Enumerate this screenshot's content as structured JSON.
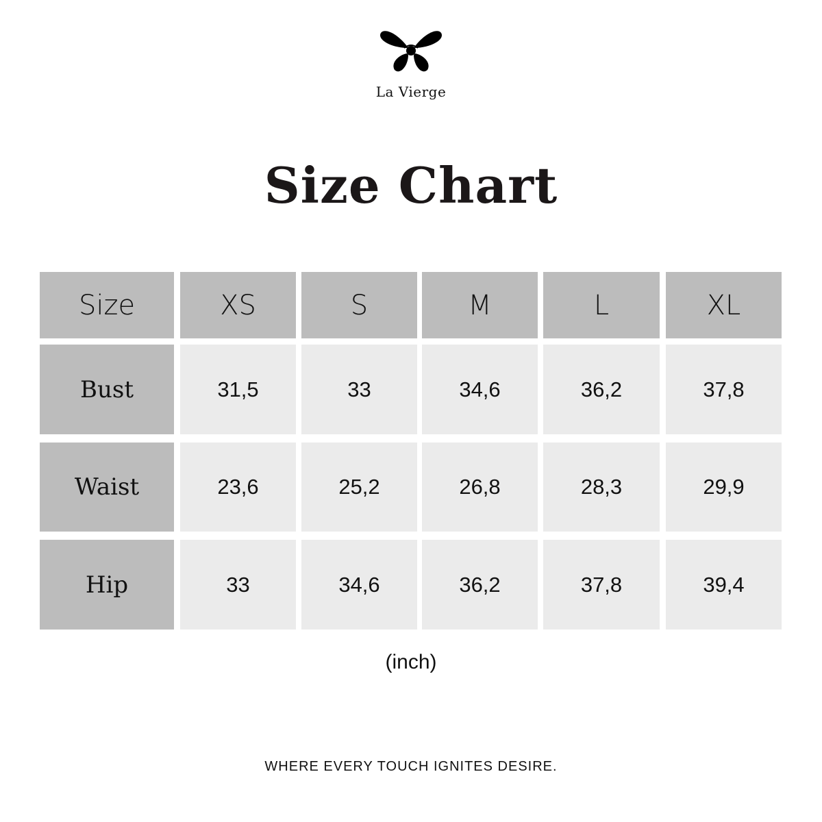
{
  "brand": {
    "name": "La Vierge",
    "logo_icon": "butterfly-eye-icon"
  },
  "title": "Size Chart",
  "table": {
    "header": [
      "Size",
      "XS",
      "S",
      "M",
      "L",
      "XL"
    ],
    "rows": [
      {
        "label": "Bust",
        "values": [
          "31,5",
          "33",
          "34,6",
          "36,2",
          "37,8"
        ]
      },
      {
        "label": "Waist",
        "values": [
          "23,6",
          "25,2",
          "26,8",
          "28,3",
          "29,9"
        ]
      },
      {
        "label": "Hip",
        "values": [
          "33",
          "34,6",
          "36,2",
          "37,8",
          "39,4"
        ]
      }
    ]
  },
  "unit": "(inch)",
  "tagline": "WHERE EVERY TOUCH IGNITES DESIRE.",
  "colors": {
    "header_cell": "#bcbcbc",
    "value_cell": "#ebebeb",
    "text": "#111111"
  }
}
